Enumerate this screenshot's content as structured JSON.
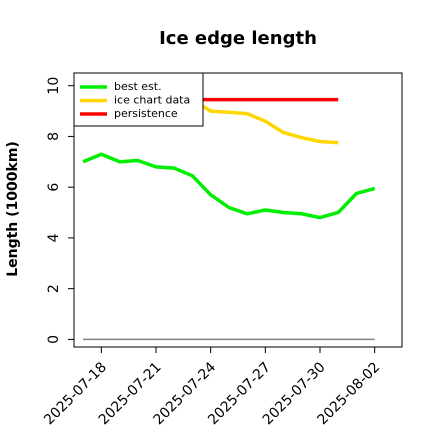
{
  "chart_data": {
    "type": "line",
    "title": "Ice edge length",
    "xlabel": "",
    "ylabel": "Length (1000km)",
    "x_ticks": [
      "2025-07-18",
      "2025-07-21",
      "2025-07-24",
      "2025-07-27",
      "2025-07-30",
      "2025-08-02"
    ],
    "x_range": [
      "2025-07-16T12:00",
      "2025-08-03T12:00"
    ],
    "ylim": [
      -0.3,
      10.5
    ],
    "y_ticks": [
      0,
      2,
      4,
      6,
      8,
      10
    ],
    "grid": false,
    "legend_position": "top-left",
    "series": [
      {
        "name": "best est.",
        "color": "#00ee00",
        "x": [
          "2025-07-17",
          "2025-07-18",
          "2025-07-19",
          "2025-07-20",
          "2025-07-21",
          "2025-07-22",
          "2025-07-23",
          "2025-07-24",
          "2025-07-25",
          "2025-07-26",
          "2025-07-27",
          "2025-07-28",
          "2025-07-29",
          "2025-07-30",
          "2025-07-31",
          "2025-08-01",
          "2025-08-02"
        ],
        "values": [
          7.0,
          7.3,
          7.0,
          7.05,
          6.8,
          6.75,
          6.45,
          5.7,
          5.2,
          4.95,
          5.1,
          5.0,
          4.95,
          4.8,
          5.0,
          5.75,
          5.95
        ]
      },
      {
        "name": "ice chart data",
        "color": "#ffd700",
        "x": [
          "2025-07-23",
          "2025-07-24",
          "2025-07-25",
          "2025-07-26",
          "2025-07-27",
          "2025-07-28",
          "2025-07-29",
          "2025-07-30",
          "2025-07-31"
        ],
        "values": [
          9.45,
          9.0,
          8.95,
          8.9,
          8.6,
          8.15,
          7.95,
          7.8,
          7.75
        ]
      },
      {
        "name": "persistence",
        "color": "#ff0000",
        "x": [
          "2025-07-22",
          "2025-07-31"
        ],
        "values": [
          9.45,
          9.45
        ]
      },
      {
        "color": "#808080",
        "x": [
          "2025-07-17",
          "2025-08-02"
        ],
        "values": [
          0,
          0
        ]
      }
    ]
  }
}
